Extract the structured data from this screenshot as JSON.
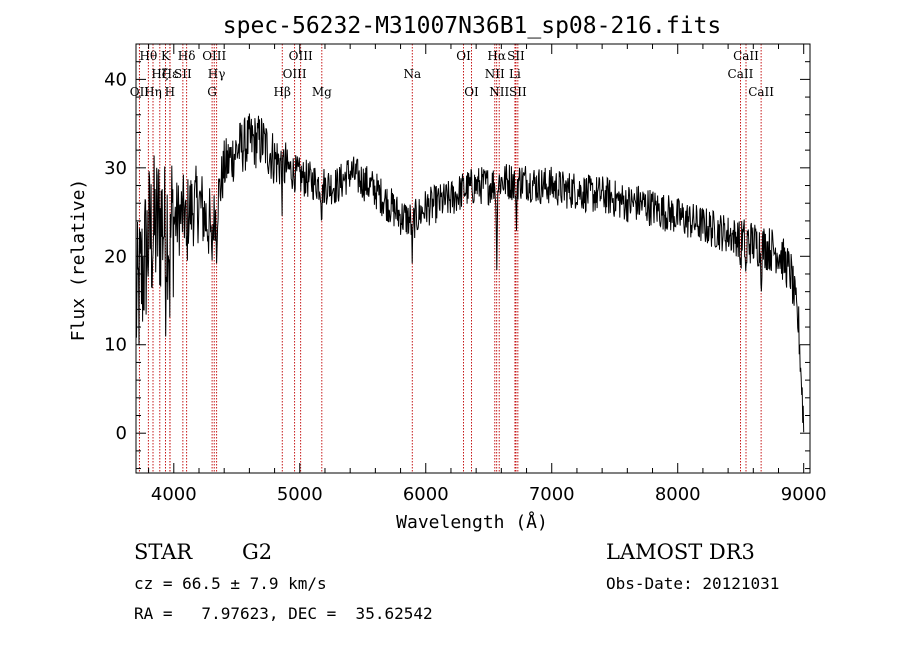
{
  "chart_data": {
    "type": "line",
    "title": "spec-56232-M31007N36B1_sp08-216.fits",
    "xlabel": "Wavelength (Å)",
    "ylabel": "Flux (relative)",
    "xlim": [
      3700,
      9050
    ],
    "ylim": [
      -4.5,
      44
    ],
    "xticks": [
      4000,
      5000,
      6000,
      7000,
      8000,
      9000
    ],
    "yticks": [
      0,
      10,
      20,
      30,
      40
    ],
    "colors": {
      "spectrum": "#000000",
      "lines": "#c00000",
      "axes": "#000000"
    },
    "continuum_anchors": [
      [
        3700,
        14
      ],
      [
        3800,
        22
      ],
      [
        3900,
        24
      ],
      [
        4000,
        24
      ],
      [
        4100,
        25
      ],
      [
        4200,
        26
      ],
      [
        4300,
        23
      ],
      [
        4400,
        30
      ],
      [
        4500,
        32
      ],
      [
        4600,
        33
      ],
      [
        4700,
        33
      ],
      [
        4800,
        31
      ],
      [
        4900,
        30
      ],
      [
        5000,
        29
      ],
      [
        5100,
        28.5
      ],
      [
        5200,
        28
      ],
      [
        5300,
        28
      ],
      [
        5400,
        29.5
      ],
      [
        5500,
        28.5
      ],
      [
        5600,
        27.5
      ],
      [
        5700,
        26
      ],
      [
        5800,
        24.5
      ],
      [
        5900,
        24
      ],
      [
        6000,
        25.5
      ],
      [
        6100,
        26
      ],
      [
        6200,
        26.5
      ],
      [
        6300,
        27.5
      ],
      [
        6400,
        28
      ],
      [
        6500,
        28
      ],
      [
        6600,
        28.5
      ],
      [
        6700,
        28.5
      ],
      [
        6800,
        28.5
      ],
      [
        6900,
        28
      ],
      [
        7000,
        28
      ],
      [
        7100,
        27.5
      ],
      [
        7200,
        27.5
      ],
      [
        7300,
        27
      ],
      [
        7400,
        27
      ],
      [
        7500,
        26.5
      ],
      [
        7600,
        26
      ],
      [
        7700,
        26
      ],
      [
        7800,
        25.5
      ],
      [
        7900,
        25
      ],
      [
        8000,
        24.5
      ],
      [
        8100,
        24
      ],
      [
        8200,
        23.5
      ],
      [
        8300,
        23
      ],
      [
        8400,
        22.5
      ],
      [
        8500,
        22
      ],
      [
        8600,
        21.5
      ],
      [
        8700,
        21
      ],
      [
        8800,
        20.5
      ],
      [
        8900,
        18
      ],
      [
        8960,
        12
      ],
      [
        9000,
        1
      ]
    ],
    "absorption_dips": [
      [
        3934,
        5
      ],
      [
        3969,
        6
      ],
      [
        4102,
        5
      ],
      [
        4300,
        4
      ],
      [
        4340,
        4
      ],
      [
        4861,
        3
      ],
      [
        5175,
        3
      ],
      [
        5893,
        4
      ],
      [
        6563,
        8
      ],
      [
        6717,
        5
      ],
      [
        8498,
        3
      ],
      [
        8542,
        4
      ],
      [
        8662,
        3
      ]
    ],
    "spectral_lines": [
      {
        "label": "OII",
        "wave": 3727,
        "row": 2
      },
      {
        "label": "Hθ",
        "wave": 3798,
        "row": 0
      },
      {
        "label": "Hη",
        "wave": 3835,
        "row": 2
      },
      {
        "label": "Hζ",
        "wave": 3889,
        "row": 1
      },
      {
        "label": "K",
        "wave": 3934,
        "row": 0
      },
      {
        "label": "H",
        "wave": 3969,
        "row": 2
      },
      {
        "label": "Hε",
        "wave": 3970,
        "row": 1
      },
      {
        "label": "SII",
        "wave": 4072,
        "row": 1
      },
      {
        "label": "Hδ",
        "wave": 4102,
        "row": 0
      },
      {
        "label": "G",
        "wave": 4304,
        "row": 2
      },
      {
        "label": "OIII",
        "wave": 4321,
        "row": 0
      },
      {
        "label": "Hγ",
        "wave": 4340,
        "row": 1
      },
      {
        "label": "Hβ",
        "wave": 4861,
        "row": 2
      },
      {
        "label": "OIII",
        "wave": 4959,
        "row": 1
      },
      {
        "label": "OIII",
        "wave": 5007,
        "row": 0
      },
      {
        "label": "Mg",
        "wave": 5175,
        "row": 2
      },
      {
        "label": "Na",
        "wave": 5893,
        "row": 1
      },
      {
        "label": "OI",
        "wave": 6300,
        "row": 0
      },
      {
        "label": "OI",
        "wave": 6363,
        "row": 2
      },
      {
        "label": "NII",
        "wave": 6548,
        "row": 1
      },
      {
        "label": "Hα",
        "wave": 6563,
        "row": 0
      },
      {
        "label": "NII",
        "wave": 6583,
        "row": 2
      },
      {
        "label": "Li",
        "wave": 6708,
        "row": 1
      },
      {
        "label": "SII",
        "wave": 6716,
        "row": 0
      },
      {
        "label": "SII",
        "wave": 6731,
        "row": 2
      },
      {
        "label": "CaII",
        "wave": 8498,
        "row": 1
      },
      {
        "label": "CaII",
        "wave": 8542,
        "row": 0
      },
      {
        "label": "CaII",
        "wave": 8662,
        "row": 2
      }
    ]
  },
  "info": {
    "class_label": "STAR",
    "subclass": "G2",
    "survey": "LAMOST DR3",
    "cz": "cz = 66.5 ± 7.9 km/s",
    "obs_date": "Obs-Date: 20121031",
    "coords": "RA =   7.97623, DEC =  35.62542"
  }
}
